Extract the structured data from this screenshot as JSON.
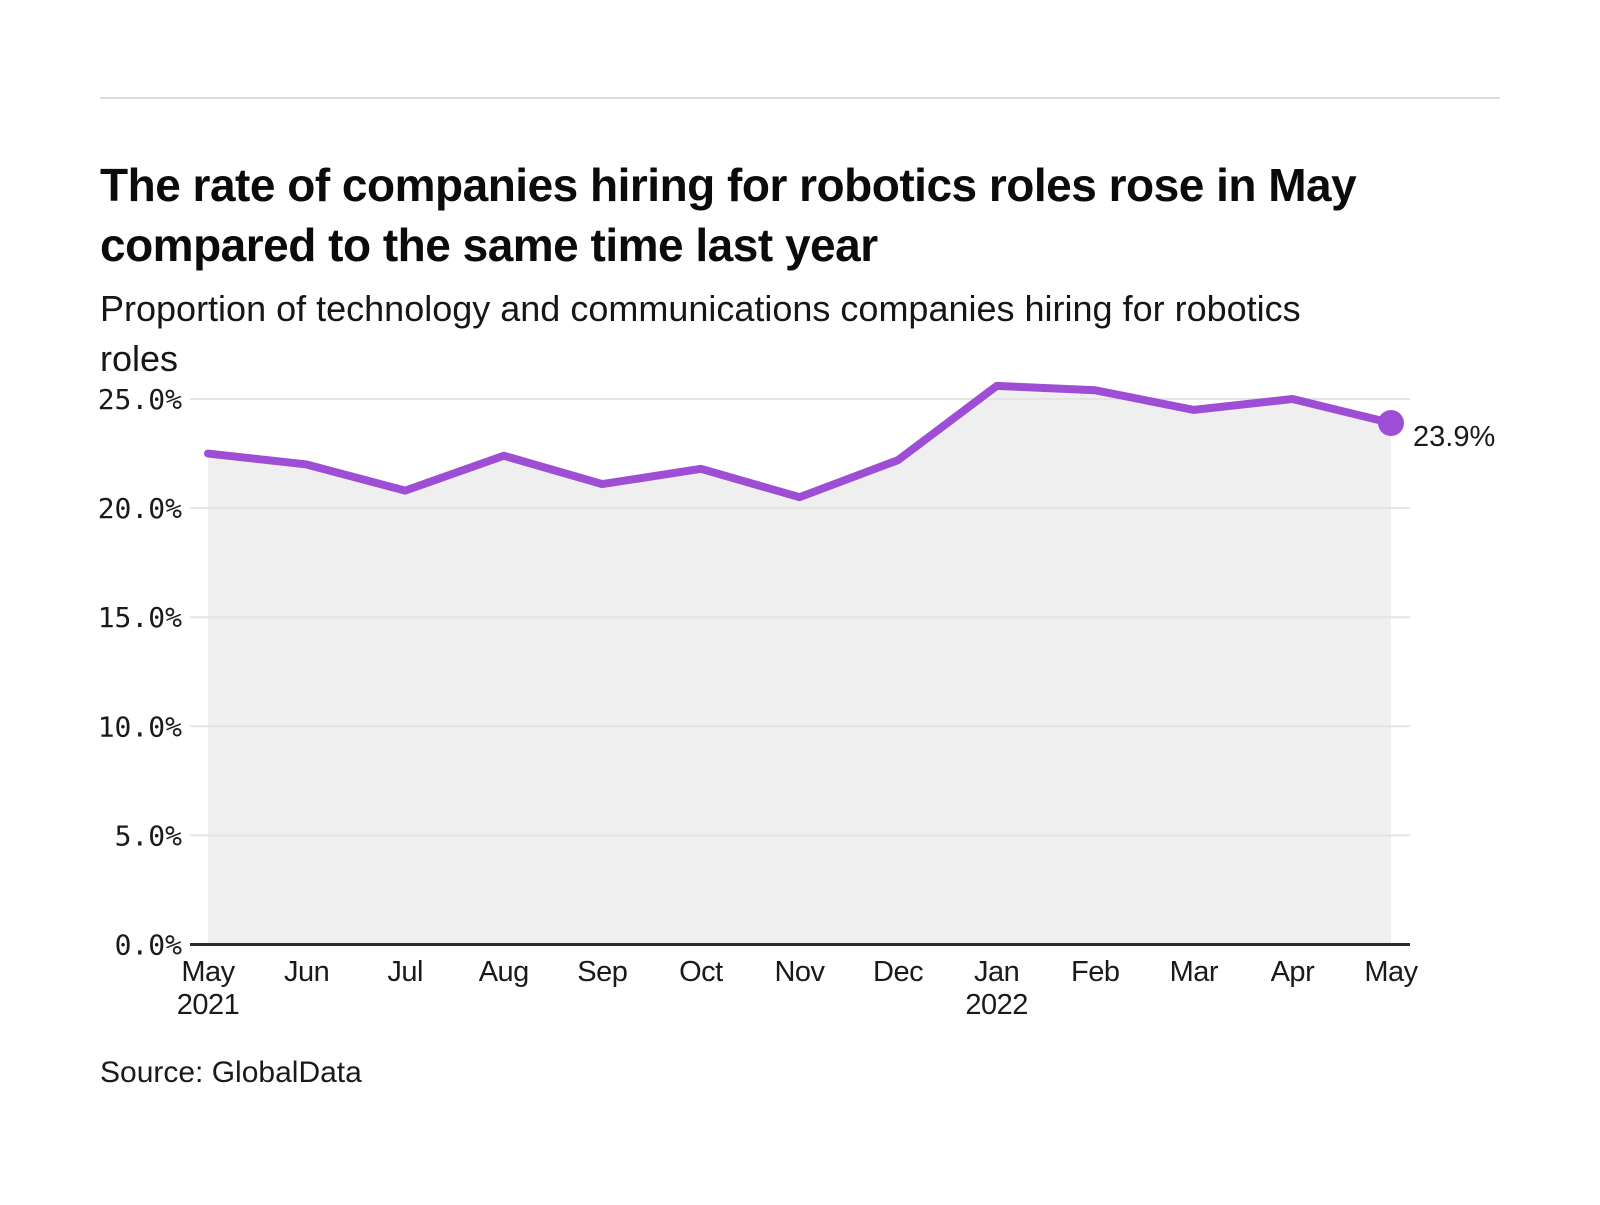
{
  "chart_data": {
    "type": "line",
    "title": "The rate of companies hiring for robotics roles rose in May compared to the same time last year",
    "title_lines": [
      "The rate of companies hiring for robotics roles rose in May",
      "compared to the same time last year"
    ],
    "subtitle": "Proportion of technology and communications companies hiring for robotics roles",
    "subtitle_lines": [
      "Proportion of technology and communications companies hiring for robotics",
      "roles"
    ],
    "categories": [
      "May",
      "Jun",
      "Jul",
      "Aug",
      "Sep",
      "Oct",
      "Nov",
      "Dec",
      "Jan",
      "Feb",
      "Mar",
      "Apr",
      "May"
    ],
    "year_labels": [
      {
        "index": 0,
        "label": "2021"
      },
      {
        "index": 8,
        "label": "2022"
      }
    ],
    "values": [
      22.5,
      22.0,
      20.8,
      22.4,
      21.1,
      21.8,
      20.5,
      22.2,
      25.6,
      25.4,
      24.5,
      25.0,
      23.9
    ],
    "end_label": "23.9%",
    "yticks": [
      {
        "value": 0,
        "label": "0.0%"
      },
      {
        "value": 5,
        "label": "5.0%"
      },
      {
        "value": 10,
        "label": "10.0%"
      },
      {
        "value": 15,
        "label": "15.0%"
      },
      {
        "value": 20,
        "label": "20.0%"
      },
      {
        "value": 25,
        "label": "25.0%"
      }
    ],
    "ylim": [
      0,
      26.8
    ],
    "grid": true,
    "legend_position": "none",
    "colors": {
      "line": "#9e4dd5",
      "area": "#efefef",
      "grid": "#e3e3e3",
      "axis": "#2b2b2b",
      "text": "#1a1a1a"
    }
  },
  "footer": {
    "source": "Source: GlobalData"
  }
}
